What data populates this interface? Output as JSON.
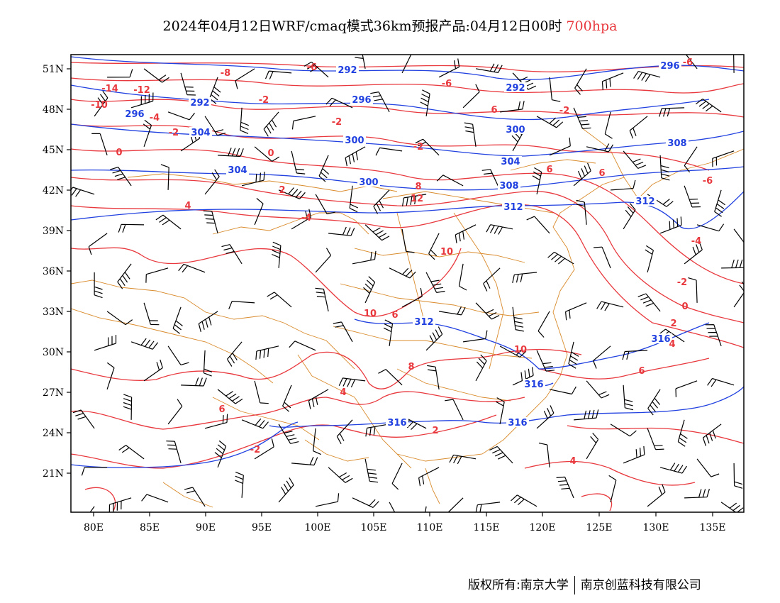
{
  "header": {
    "title": "2024年04月12日WRF/cmaq模式36km预报产品:04月12日00时",
    "level": "700hpa"
  },
  "map": {
    "lon_range": [
      78,
      138
    ],
    "lat_range": [
      17.5,
      52
    ],
    "colors": {
      "temperature": "#e8383d",
      "height": "#2040e0",
      "border": "#d98a2b",
      "wind": "#000000"
    },
    "lon_ticks": [
      "80E",
      "85E",
      "90E",
      "95E",
      "100E",
      "105E",
      "110E",
      "115E",
      "120E",
      "125E",
      "130E",
      "135E"
    ],
    "lat_ticks": [
      "51N",
      "48N",
      "45N",
      "42N",
      "39N",
      "36N",
      "33N",
      "30N",
      "27N",
      "24N",
      "21N"
    ],
    "height_labels": [
      "292",
      "292",
      "296",
      "292",
      "296",
      "296",
      "300",
      "300",
      "304",
      "304",
      "300",
      "304",
      "308",
      "308",
      "312",
      "312",
      "312",
      "316",
      "316",
      "316",
      "316"
    ],
    "temp_labels": [
      "-14",
      "-12",
      "-10",
      "-8",
      "-6",
      "-6",
      "-4",
      "-2",
      "-2",
      "-2",
      "-2",
      "0",
      "0",
      "-2",
      "2",
      "4",
      "-4",
      "-6",
      "-6",
      "-4",
      "-2",
      "0",
      "2",
      "4",
      "6",
      "6",
      "6",
      "8",
      "12",
      "10",
      "10",
      "10",
      "6",
      "8",
      "4",
      "2",
      "-2",
      "4",
      "6",
      "6"
    ]
  },
  "footer": {
    "copyright": "版权所有:南京大学",
    "company": "南京创蓝科技有限公司"
  }
}
